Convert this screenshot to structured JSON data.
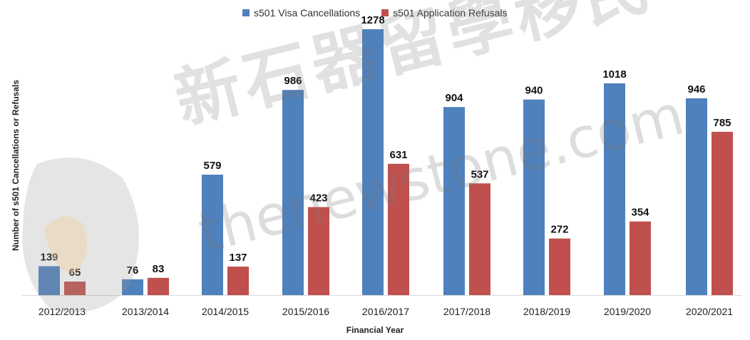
{
  "chart_data": {
    "type": "bar",
    "title": "",
    "xlabel": "Financial Year",
    "ylabel": "Number of s501 Cancellations or Refusals",
    "ylim": [
      0,
      1350
    ],
    "grid": false,
    "legend_position": "top-center",
    "categories": [
      "2012/2013",
      "2013/2014",
      "2014/2015",
      "2015/2016",
      "2016/2017",
      "2017/2018",
      "2018/2019",
      "2019/2020",
      "2020/2021"
    ],
    "series": [
      {
        "name": "s501 Visa Cancellations",
        "color": "#4f81bd",
        "values": [
          139,
          76,
          579,
          986,
          1278,
          904,
          940,
          1018,
          946
        ]
      },
      {
        "name": "s501 Application Refusals",
        "color": "#c0504d",
        "values": [
          65,
          83,
          137,
          423,
          631,
          537,
          272,
          354,
          785
        ]
      }
    ]
  },
  "watermark": {
    "chinese": "新石器留學移民",
    "english": "thenewstone.com"
  }
}
